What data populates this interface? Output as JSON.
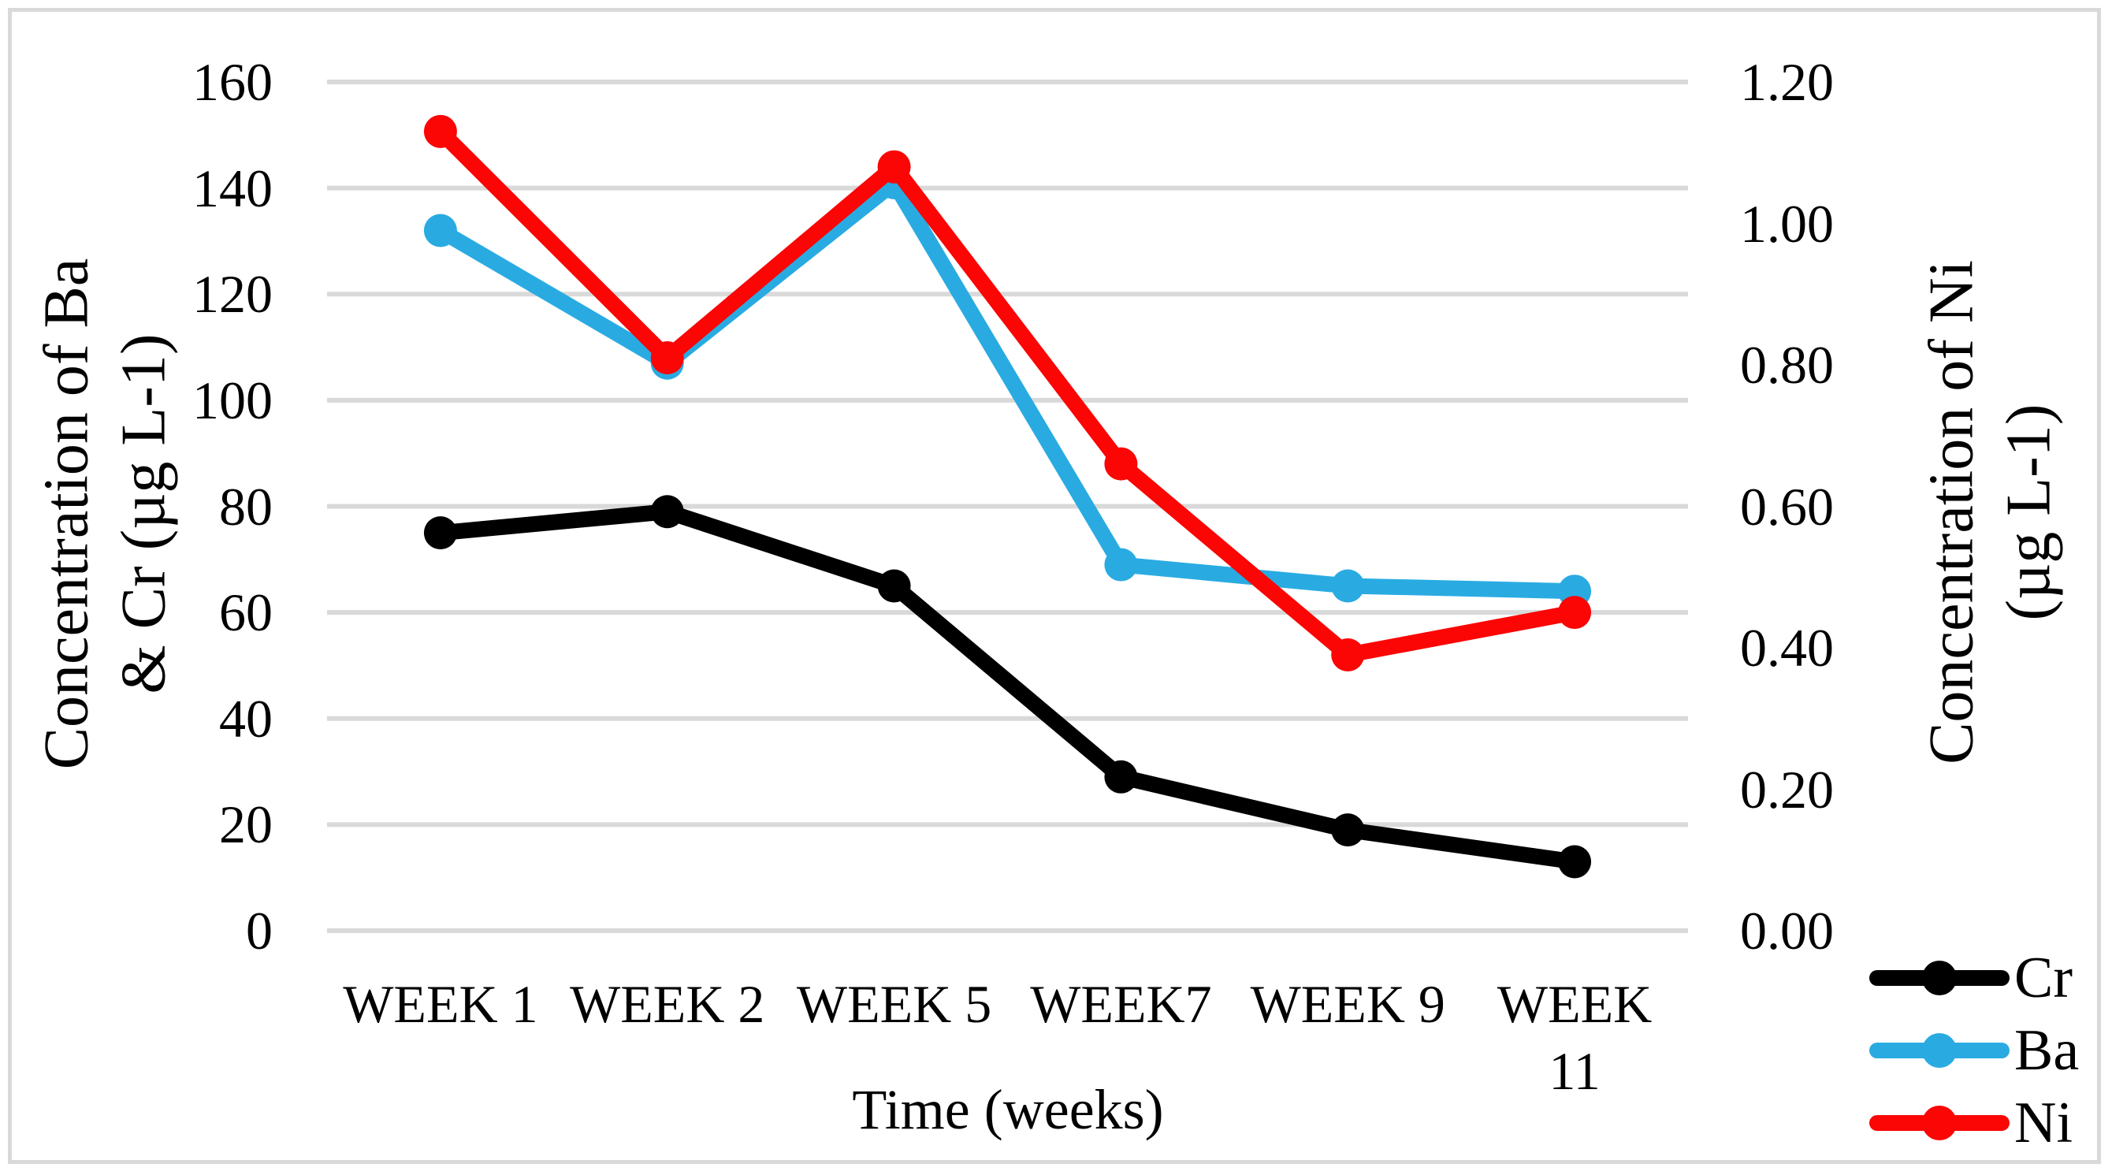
{
  "chart_data": {
    "type": "line",
    "categories": [
      "WEEK 1",
      "WEEK 2",
      "WEEK 5",
      "WEEK7",
      "WEEK 9",
      "WEEK\n11"
    ],
    "x_axis_title": "Time (weeks)",
    "left_axis": {
      "title_line1": "Concentration of Ba",
      "title_line2": "& Cr (µg L-1)",
      "min": 0,
      "max": 160,
      "major_unit": 20,
      "ticks": [
        "160",
        "140",
        "120",
        "100",
        "80",
        "60",
        "40",
        "20",
        "0"
      ]
    },
    "right_axis": {
      "title_line1": "Concentration of Ni",
      "title_line2": "(µg L-1)",
      "min": 0,
      "max": 1.2,
      "major_unit": 0.2,
      "ticks": [
        "1.20",
        "1.00",
        "0.80",
        "0.60",
        "0.40",
        "0.20",
        "0.00"
      ]
    },
    "series": [
      {
        "name": "Cr",
        "axis": "left",
        "color": "#000000",
        "values": [
          75,
          79,
          65,
          29,
          19,
          13
        ]
      },
      {
        "name": "Ba",
        "axis": "left",
        "color": "#29ABE2",
        "values": [
          132,
          107,
          141,
          69,
          65,
          64
        ]
      },
      {
        "name": "Ni",
        "axis": "right",
        "color": "#FB0505",
        "values": [
          1.13,
          0.81,
          1.08,
          0.66,
          0.39,
          0.45
        ]
      }
    ],
    "legend": {
      "position": "bottom-right",
      "entries": [
        "Cr",
        "Ba",
        "Ni"
      ]
    },
    "grid": {
      "horizontal": true,
      "color": "#D9D9D9"
    },
    "frame_color": "#D9D9D9",
    "background": "#FFFFFF"
  }
}
